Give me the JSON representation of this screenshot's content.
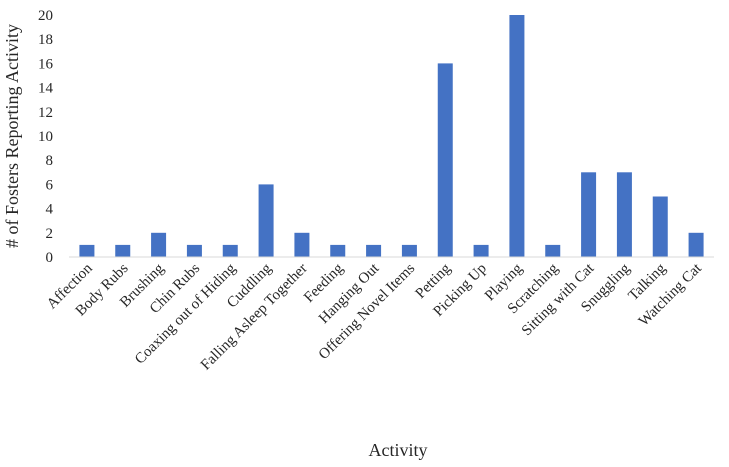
{
  "chart_data": {
    "type": "bar",
    "title": "",
    "xlabel": "Activity",
    "ylabel": "# of Fosters Reporting Activity",
    "ylim": [
      0,
      20
    ],
    "yticks": [
      0,
      2,
      4,
      6,
      8,
      10,
      12,
      14,
      16,
      18,
      20
    ],
    "grid": false,
    "legend": "none",
    "bar_color": "#4472c4",
    "categories": [
      "Affection",
      "Body Rubs",
      "Brushing",
      "Chin Rubs",
      "Coaxing out of Hiding",
      "Cuddling",
      "Falling Asleep Together",
      "Feeding",
      "Hanging Out",
      "Offering Novel Items",
      "Petting",
      "Picking Up",
      "Playing",
      "Scratching",
      "Sitting with Cat",
      "Snuggling",
      "Talking",
      "Watching Cat"
    ],
    "values": [
      1,
      1,
      2,
      1,
      1,
      6,
      2,
      1,
      1,
      1,
      16,
      1,
      20,
      1,
      7,
      7,
      5,
      2
    ]
  }
}
